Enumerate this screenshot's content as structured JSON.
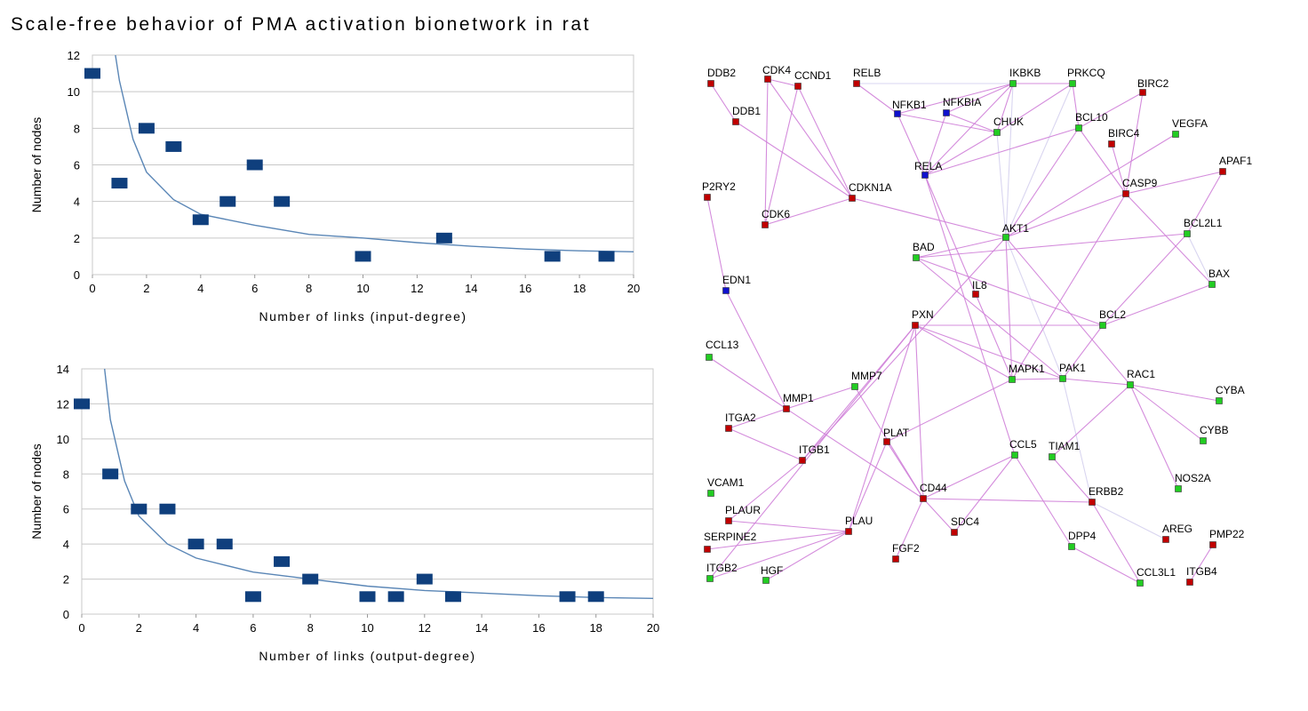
{
  "title": "Scale-free behavior of PMA activation bionetwork in rat",
  "colors": {
    "marker": "#0f3f7d",
    "curve": "#5a86b6",
    "grid": "#c8c8c8",
    "edge": "#cf7fd8",
    "edge_light": "#d5d0ee",
    "node_red": "#c00000",
    "node_green": "#22cc22",
    "node_blue": "#1010cc"
  },
  "chart_data": [
    {
      "type": "scatter",
      "xlabel": "Number of links (input-degree)",
      "ylabel": "Number of nodes",
      "xlim": [
        0,
        20
      ],
      "ylim": [
        0,
        12
      ],
      "xticks": [
        0,
        2,
        4,
        6,
        8,
        10,
        12,
        14,
        16,
        18,
        20
      ],
      "yticks": [
        0,
        2,
        4,
        6,
        8,
        10,
        12
      ],
      "grid": "horizontal",
      "legend": "none",
      "points": [
        {
          "x": 0,
          "y": 11
        },
        {
          "x": 1,
          "y": 5
        },
        {
          "x": 2,
          "y": 8
        },
        {
          "x": 3,
          "y": 7
        },
        {
          "x": 4,
          "y": 3
        },
        {
          "x": 5,
          "y": 4
        },
        {
          "x": 6,
          "y": 6
        },
        {
          "x": 7,
          "y": 4
        },
        {
          "x": 10,
          "y": 1
        },
        {
          "x": 13,
          "y": 2
        },
        {
          "x": 17,
          "y": 1
        },
        {
          "x": 19,
          "y": 1
        }
      ],
      "fit_curve": [
        {
          "x": 0.85,
          "y": 12
        },
        {
          "x": 1,
          "y": 10.6
        },
        {
          "x": 1.5,
          "y": 7.4
        },
        {
          "x": 2,
          "y": 5.6
        },
        {
          "x": 3,
          "y": 4.1
        },
        {
          "x": 4,
          "y": 3.3
        },
        {
          "x": 6,
          "y": 2.7
        },
        {
          "x": 8,
          "y": 2.2
        },
        {
          "x": 10,
          "y": 2.0
        },
        {
          "x": 12,
          "y": 1.75
        },
        {
          "x": 14,
          "y": 1.55
        },
        {
          "x": 16,
          "y": 1.4
        },
        {
          "x": 18,
          "y": 1.3
        },
        {
          "x": 20,
          "y": 1.25
        }
      ]
    },
    {
      "type": "scatter",
      "xlabel": "Number of links (output-degree)",
      "ylabel": "Number of nodes",
      "xlim": [
        0,
        20
      ],
      "ylim": [
        0,
        14
      ],
      "xticks": [
        0,
        2,
        4,
        6,
        8,
        10,
        12,
        14,
        16,
        18,
        20
      ],
      "yticks": [
        0,
        2,
        4,
        6,
        8,
        10,
        12,
        14
      ],
      "grid": "horizontal",
      "legend": "none",
      "points": [
        {
          "x": 0,
          "y": 12
        },
        {
          "x": 1,
          "y": 8
        },
        {
          "x": 2,
          "y": 6
        },
        {
          "x": 3,
          "y": 6
        },
        {
          "x": 4,
          "y": 4
        },
        {
          "x": 5,
          "y": 4
        },
        {
          "x": 6,
          "y": 1
        },
        {
          "x": 7,
          "y": 3
        },
        {
          "x": 8,
          "y": 2
        },
        {
          "x": 10,
          "y": 1
        },
        {
          "x": 11,
          "y": 1
        },
        {
          "x": 12,
          "y": 2
        },
        {
          "x": 13,
          "y": 1
        },
        {
          "x": 17,
          "y": 1
        },
        {
          "x": 18,
          "y": 1
        }
      ],
      "fit_curve": [
        {
          "x": 0.8,
          "y": 14
        },
        {
          "x": 1,
          "y": 11.1
        },
        {
          "x": 1.5,
          "y": 7.6
        },
        {
          "x": 2,
          "y": 5.6
        },
        {
          "x": 3,
          "y": 4.0
        },
        {
          "x": 4,
          "y": 3.2
        },
        {
          "x": 6,
          "y": 2.4
        },
        {
          "x": 8,
          "y": 2.0
        },
        {
          "x": 10,
          "y": 1.6
        },
        {
          "x": 12,
          "y": 1.35
        },
        {
          "x": 14,
          "y": 1.2
        },
        {
          "x": 16,
          "y": 1.05
        },
        {
          "x": 18,
          "y": 0.95
        },
        {
          "x": 20,
          "y": 0.9
        }
      ]
    }
  ],
  "network": {
    "nodes": [
      {
        "id": "DDB2",
        "color": "red"
      },
      {
        "id": "CDK4",
        "color": "red"
      },
      {
        "id": "CCND1",
        "color": "red"
      },
      {
        "id": "RELB",
        "color": "red"
      },
      {
        "id": "IKBKB",
        "color": "green"
      },
      {
        "id": "PRKCQ",
        "color": "green"
      },
      {
        "id": "BIRC2",
        "color": "red"
      },
      {
        "id": "NFKB1",
        "color": "blue"
      },
      {
        "id": "NFKBIA",
        "color": "blue"
      },
      {
        "id": "DDB1",
        "color": "red"
      },
      {
        "id": "CHUK",
        "color": "green"
      },
      {
        "id": "BCL10",
        "color": "green"
      },
      {
        "id": "VEGFA",
        "color": "green"
      },
      {
        "id": "BIRC4",
        "color": "red"
      },
      {
        "id": "APAF1",
        "color": "red"
      },
      {
        "id": "RELA",
        "color": "blue"
      },
      {
        "id": "P2RY2",
        "color": "red"
      },
      {
        "id": "CDKN1A",
        "color": "red"
      },
      {
        "id": "CASP9",
        "color": "red"
      },
      {
        "id": "CDK6",
        "color": "red"
      },
      {
        "id": "AKT1",
        "color": "green"
      },
      {
        "id": "BCL2L1",
        "color": "green"
      },
      {
        "id": "BAD",
        "color": "green"
      },
      {
        "id": "EDN1",
        "color": "blue"
      },
      {
        "id": "IL8",
        "color": "red"
      },
      {
        "id": "BAX",
        "color": "green"
      },
      {
        "id": "PXN",
        "color": "red"
      },
      {
        "id": "BCL2",
        "color": "green"
      },
      {
        "id": "CCL13",
        "color": "green"
      },
      {
        "id": "MAPK1",
        "color": "green"
      },
      {
        "id": "PAK1",
        "color": "green"
      },
      {
        "id": "RAC1",
        "color": "green"
      },
      {
        "id": "MMP7",
        "color": "green"
      },
      {
        "id": "CYBA",
        "color": "green"
      },
      {
        "id": "MMP1",
        "color": "red"
      },
      {
        "id": "ITGA2",
        "color": "red"
      },
      {
        "id": "CYBB",
        "color": "green"
      },
      {
        "id": "PLAT",
        "color": "red"
      },
      {
        "id": "CCL5",
        "color": "green"
      },
      {
        "id": "TIAM1",
        "color": "green"
      },
      {
        "id": "ITGB1",
        "color": "red"
      },
      {
        "id": "VCAM1",
        "color": "green"
      },
      {
        "id": "NOS2A",
        "color": "green"
      },
      {
        "id": "CD44",
        "color": "red"
      },
      {
        "id": "ERBB2",
        "color": "red"
      },
      {
        "id": "PLAUR",
        "color": "red"
      },
      {
        "id": "SDC4",
        "color": "red"
      },
      {
        "id": "PLAU",
        "color": "red"
      },
      {
        "id": "AREG",
        "color": "red"
      },
      {
        "id": "PMP22",
        "color": "red"
      },
      {
        "id": "SERPINE2",
        "color": "red"
      },
      {
        "id": "DPP4",
        "color": "green"
      },
      {
        "id": "FGF2",
        "color": "red"
      },
      {
        "id": "ITGB2",
        "color": "green"
      },
      {
        "id": "HGF",
        "color": "green"
      },
      {
        "id": "CCL3L1",
        "color": "green"
      },
      {
        "id": "ITGB4",
        "color": "red"
      }
    ],
    "edges": [
      [
        "DDB2",
        "DDB1"
      ],
      [
        "DDB1",
        "CDKN1A"
      ],
      [
        "CDK4",
        "CCND1"
      ],
      [
        "CDK4",
        "CDKN1A"
      ],
      [
        "CCND1",
        "CDKN1A"
      ],
      [
        "CCND1",
        "CDK6"
      ],
      [
        "CDK4",
        "CDK6"
      ],
      [
        "CDK6",
        "CDKN1A"
      ],
      [
        "CDKN1A",
        "AKT1"
      ],
      [
        "RELB",
        "NFKB1"
      ],
      [
        "RELB",
        "IKBKB"
      ],
      [
        "NFKB1",
        "IKBKB"
      ],
      [
        "NFKB1",
        "CHUK"
      ],
      [
        "NFKB1",
        "RELA"
      ],
      [
        "NFKBIA",
        "IKBKB"
      ],
      [
        "NFKBIA",
        "CHUK"
      ],
      [
        "NFKBIA",
        "RELA"
      ],
      [
        "IKBKB",
        "PRKCQ"
      ],
      [
        "IKBKB",
        "CHUK"
      ],
      [
        "IKBKB",
        "RELA"
      ],
      [
        "IKBKB",
        "AKT1"
      ],
      [
        "PRKCQ",
        "CHUK"
      ],
      [
        "PRKCQ",
        "BCL10"
      ],
      [
        "PRKCQ",
        "AKT1"
      ],
      [
        "CHUK",
        "RELA"
      ],
      [
        "CHUK",
        "AKT1"
      ],
      [
        "BCL10",
        "RELA"
      ],
      [
        "BCL10",
        "AKT1"
      ],
      [
        "BCL10",
        "CASP9"
      ],
      [
        "BIRC2",
        "BCL10"
      ],
      [
        "BIRC2",
        "CASP9"
      ],
      [
        "BIRC4",
        "CASP9"
      ],
      [
        "APAF1",
        "CASP9"
      ],
      [
        "APAF1",
        "BCL2L1"
      ],
      [
        "CASP9",
        "AKT1"
      ],
      [
        "CASP9",
        "BAX"
      ],
      [
        "AKT1",
        "BAD"
      ],
      [
        "AKT1",
        "VEGFA"
      ],
      [
        "AKT1",
        "PAK1"
      ],
      [
        "AKT1",
        "MAPK1"
      ],
      [
        "AKT1",
        "RAC1"
      ],
      [
        "BAD",
        "BCL2L1"
      ],
      [
        "BAD",
        "BCL2"
      ],
      [
        "BCL2L1",
        "BCL2"
      ],
      [
        "BCL2L1",
        "BAX"
      ],
      [
        "BCL2",
        "BAX"
      ],
      [
        "RELA",
        "IL8"
      ],
      [
        "RELA",
        "CCL5"
      ],
      [
        "P2RY2",
        "EDN1"
      ],
      [
        "EDN1",
        "MMP1"
      ],
      [
        "IL8",
        "MAPK1"
      ],
      [
        "PXN",
        "BCL2"
      ],
      [
        "PXN",
        "MAPK1"
      ],
      [
        "PXN",
        "PAK1"
      ],
      [
        "PXN",
        "ITGB1"
      ],
      [
        "PXN",
        "CD44"
      ],
      [
        "PXN",
        "PLAU"
      ],
      [
        "BAD",
        "PAK1"
      ],
      [
        "MAPK1",
        "PAK1"
      ],
      [
        "MAPK1",
        "PLAT"
      ],
      [
        "MAPK1",
        "CASP9"
      ],
      [
        "PAK1",
        "RAC1"
      ],
      [
        "PAK1",
        "BCL2"
      ],
      [
        "PAK1",
        "ERBB2"
      ],
      [
        "RAC1",
        "CYBA"
      ],
      [
        "RAC1",
        "CYBB"
      ],
      [
        "RAC1",
        "NOS2A"
      ],
      [
        "RAC1",
        "TIAM1"
      ],
      [
        "TIAM1",
        "ERBB2"
      ],
      [
        "ERBB2",
        "CD44"
      ],
      [
        "ERBB2",
        "CCL3L1"
      ],
      [
        "ERBB2",
        "AREG"
      ],
      [
        "PMP22",
        "ITGB4"
      ],
      [
        "CCL5",
        "DPP4"
      ],
      [
        "CCL5",
        "SDC4"
      ],
      [
        "CCL13",
        "MMP1"
      ],
      [
        "MMP1",
        "MMP7"
      ],
      [
        "MMP1",
        "ITGA2"
      ],
      [
        "MMP1",
        "CD44"
      ],
      [
        "MMP7",
        "CD44"
      ],
      [
        "ITGA2",
        "ITGB1"
      ],
      [
        "ITGB1",
        "PLAUR"
      ],
      [
        "PLAT",
        "PLAU"
      ],
      [
        "PLAT",
        "CD44"
      ],
      [
        "PLAUR",
        "PLAU"
      ],
      [
        "PLAU",
        "SERPINE2"
      ],
      [
        "PLAU",
        "ITGB2"
      ],
      [
        "PLAU",
        "HGF"
      ],
      [
        "CD44",
        "FGF2"
      ],
      [
        "CD44",
        "SDC4"
      ],
      [
        "CD44",
        "CCL5"
      ],
      [
        "DPP4",
        "CCL3L1"
      ],
      [
        "AKT1",
        "ITGB1"
      ],
      [
        "PXN",
        "ITGB2"
      ]
    ]
  }
}
